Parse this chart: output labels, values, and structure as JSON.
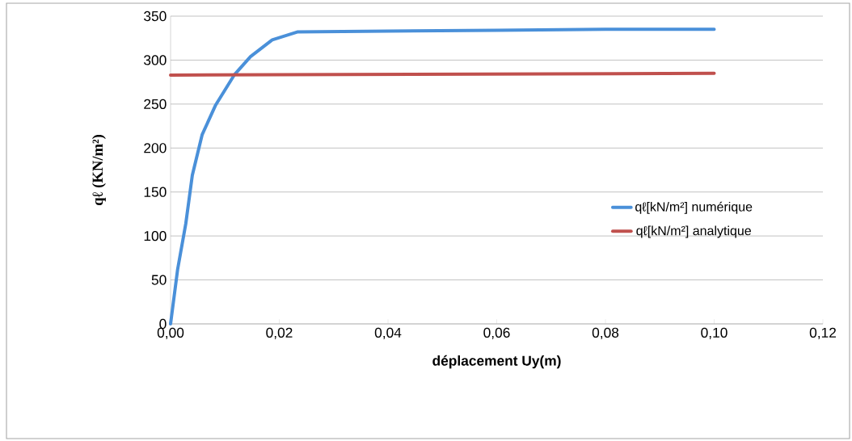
{
  "chart_data": {
    "type": "line",
    "xlabel": "déplacement Uy(m)",
    "ylabel": "qℓ (KN/m²)",
    "xlim": [
      0,
      0.12
    ],
    "ylim": [
      0,
      350
    ],
    "xticks": [
      {
        "value": 0,
        "label": "0,00"
      },
      {
        "value": 0.02,
        "label": "0,02"
      },
      {
        "value": 0.04,
        "label": "0,04"
      },
      {
        "value": 0.06,
        "label": "0,06"
      },
      {
        "value": 0.08,
        "label": "0,08"
      },
      {
        "value": 0.1,
        "label": "0,10"
      },
      {
        "value": 0.12,
        "label": "0,12"
      }
    ],
    "yticks": [
      0,
      50,
      100,
      150,
      200,
      250,
      300,
      350
    ],
    "grid": "y",
    "legend": "right",
    "marker": "none",
    "line_style": "solid",
    "series": [
      {
        "name": "qℓ[kN/m²] numérique",
        "color": "#4a90d9",
        "x": [
          0,
          0.0013,
          0.0028,
          0.004,
          0.0058,
          0.0083,
          0.0117,
          0.0147,
          0.0187,
          0.0233,
          0.04,
          0.06,
          0.08,
          0.1
        ],
        "values": [
          0,
          62,
          114,
          169,
          215,
          249,
          283,
          304,
          323,
          332,
          333,
          334,
          335,
          335
        ]
      },
      {
        "name": "qℓ[kN/m²] analytique",
        "color": "#c0504d",
        "x": [
          0,
          0.1
        ],
        "values": [
          283,
          285
        ]
      }
    ]
  }
}
